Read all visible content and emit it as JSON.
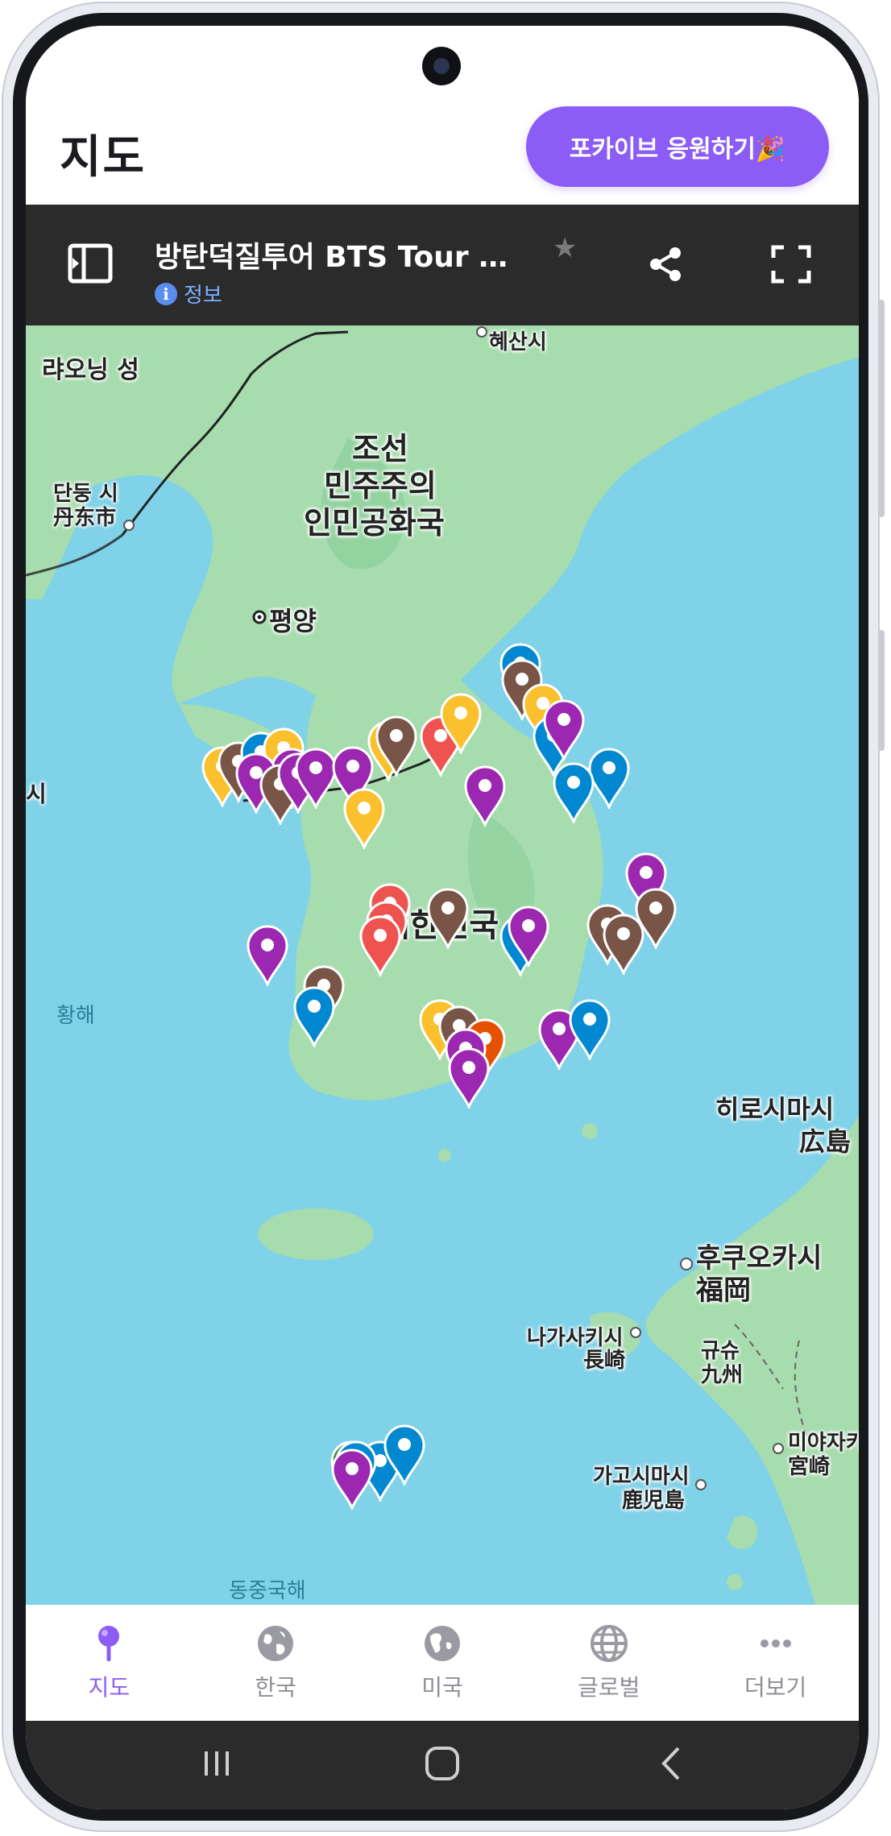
{
  "header": {
    "title": "지도",
    "support_button": "포카이브 응원하기🎉"
  },
  "map_toolbar": {
    "title": "방탄덕질투어 BTS Tour @...",
    "info_label": "정보"
  },
  "map": {
    "labels": {
      "liaoning": "랴오닝 성",
      "hyesan": "혜산시",
      "dprk_line1": "조선",
      "dprk_line2": "민주주의",
      "dprk_line3": "인민공화국",
      "dandong_ko": "단둥 시",
      "dandong_zh": "丹东市",
      "pyongyang": "평양",
      "south_korea": "대한민국",
      "yellow_sea": "황해",
      "east_china_sea": "동중국해",
      "hiroshima_ko": "히로시마시",
      "hiroshima_ja": "広島",
      "fukuoka_ko": "후쿠오카시",
      "fukuoka_ja": "福岡",
      "nagasaki_ko": "나가사키시",
      "nagasaki_ja": "長崎",
      "kyushu_ko": "규슈",
      "kyushu_ja": "九州",
      "miyazaki_ko": "미야자키",
      "miyazaki_ja": "宮崎",
      "kagoshima_ko": "가고시마시",
      "kagoshima_ja": "鹿児島",
      "edge_si": "시"
    },
    "marker_colors": {
      "purple": "#9c27b0",
      "blue": "#0288d1",
      "yellow": "#fbc02d",
      "brown": "#795548",
      "red": "#ef5350",
      "green": "#388e3c",
      "orange": "#e65100"
    }
  },
  "bottom_nav": {
    "items": [
      {
        "label": "지도",
        "icon": "map-pin-icon",
        "active": true
      },
      {
        "label": "한국",
        "icon": "globe-asia-icon",
        "active": false
      },
      {
        "label": "미국",
        "icon": "globe-americas-icon",
        "active": false
      },
      {
        "label": "글로벌",
        "icon": "globe-grid-icon",
        "active": false
      },
      {
        "label": "더보기",
        "icon": "more-dots-icon",
        "active": false
      }
    ]
  },
  "colors": {
    "accent": "#8b5cf6",
    "toolbar_bg": "#2b2b2b",
    "sea": "#7fd2e8",
    "land": "#a6dcae"
  }
}
